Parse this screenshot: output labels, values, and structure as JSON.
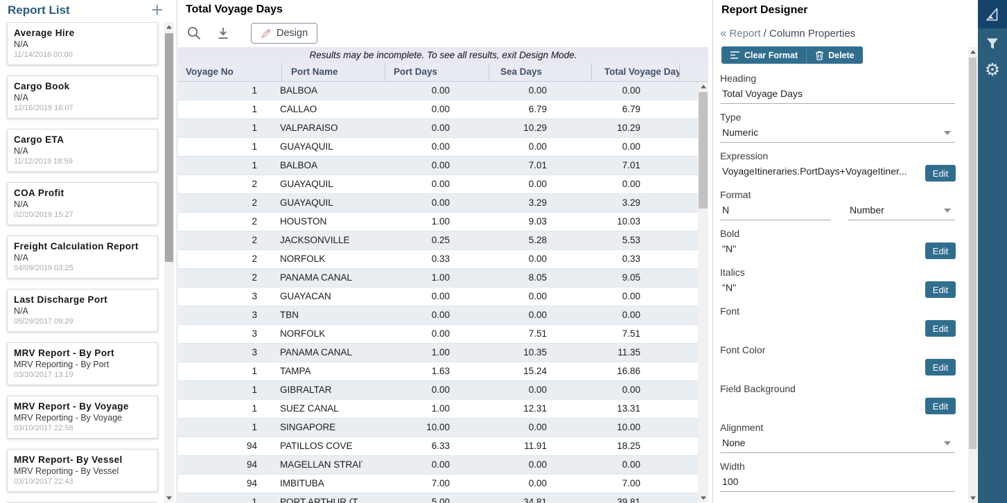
{
  "sidebar": {
    "title": "Report List",
    "reports": [
      {
        "title": "Average Hire",
        "subtitle": "N/A",
        "date": "11/14/2016 00:00"
      },
      {
        "title": "Cargo Book",
        "subtitle": "N/A",
        "date": "12/16/2019 16:07"
      },
      {
        "title": "Cargo ETA",
        "subtitle": "N/A",
        "date": "11/12/2019 18:59"
      },
      {
        "title": "COA Profit",
        "subtitle": "N/A",
        "date": "02/20/2019 15:27"
      },
      {
        "title": "Freight Calculation Report",
        "subtitle": "N/A",
        "date": "04/09/2019 03:25"
      },
      {
        "title": "Last Discharge Port",
        "subtitle": "N/A",
        "date": "05/29/2017 09:29"
      },
      {
        "title": "MRV Report - By Port",
        "subtitle": "MRV Reporting - By Port",
        "date": "03/30/2017 13:19"
      },
      {
        "title": "MRV Report - By Voyage",
        "subtitle": "MRV Reporting - By Voyage",
        "date": "03/10/2017 22:58"
      },
      {
        "title": "MRV Report- By Vessel",
        "subtitle": "MRV Reporting - By Vessel",
        "date": "03/10/2017 22:43"
      }
    ]
  },
  "main": {
    "title": "Total Voyage Days",
    "design_button_label": "Design",
    "notice": "Results may be incomplete. To see all results, exit Design Mode.",
    "table": {
      "columns": [
        "Voyage No",
        "Port Name",
        "Port Days",
        "Sea Days",
        "Total Voyage Days"
      ],
      "rows": [
        [
          "1",
          "BALBOA",
          "0.00",
          "0.00",
          "0.00"
        ],
        [
          "1",
          "CALLAO",
          "0.00",
          "6.79",
          "6.79"
        ],
        [
          "1",
          "VALPARAISO",
          "0.00",
          "10.29",
          "10.29"
        ],
        [
          "1",
          "GUAYAQUIL",
          "0.00",
          "0.00",
          "0.00"
        ],
        [
          "1",
          "BALBOA",
          "0.00",
          "7.01",
          "7.01"
        ],
        [
          "2",
          "GUAYAQUIL",
          "0.00",
          "0.00",
          "0.00"
        ],
        [
          "2",
          "GUAYAQUIL",
          "0.00",
          "3.29",
          "3.29"
        ],
        [
          "2",
          "HOUSTON",
          "1.00",
          "9.03",
          "10.03"
        ],
        [
          "2",
          "JACKSONVILLE",
          "0.25",
          "5.28",
          "5.53"
        ],
        [
          "2",
          "NORFOLK",
          "0.33",
          "0.00",
          "0.33"
        ],
        [
          "2",
          "PANAMA CANAL",
          "1.00",
          "8.05",
          "9.05"
        ],
        [
          "3",
          "GUAYACAN",
          "0.00",
          "0.00",
          "0.00"
        ],
        [
          "3",
          "TBN",
          "0.00",
          "0.00",
          "0.00"
        ],
        [
          "3",
          "NORFOLK",
          "0.00",
          "7.51",
          "7.51"
        ],
        [
          "3",
          "PANAMA CANAL",
          "1.00",
          "10.35",
          "11.35"
        ],
        [
          "1",
          "TAMPA",
          "1.63",
          "15.24",
          "16.86"
        ],
        [
          "1",
          "GIBRALTAR",
          "0.00",
          "0.00",
          "0.00"
        ],
        [
          "1",
          "SUEZ CANAL",
          "1.00",
          "12.31",
          "13.31"
        ],
        [
          "1",
          "SINGAPORE",
          "10.00",
          "0.00",
          "10.00"
        ],
        [
          "94",
          "PATILLOS COVE",
          "6.33",
          "11.91",
          "18.25"
        ],
        [
          "94",
          "MAGELLAN STRAIT",
          "0.00",
          "0.00",
          "0.00"
        ],
        [
          "94",
          "IMBITUBA",
          "7.00",
          "0.00",
          "7.00"
        ],
        [
          "1",
          "PORT ARTHUR (T",
          "5.00",
          "34.81",
          "39.81"
        ]
      ]
    }
  },
  "designer": {
    "title": "Report Designer",
    "breadcrumb_back_chevron": "«",
    "breadcrumb_back": "Report",
    "breadcrumb_separator": "/",
    "breadcrumb_current": "Column Properties",
    "clear_format_label": "Clear Format",
    "delete_label": "Delete",
    "edit_label": "Edit",
    "fields": {
      "heading": {
        "label": "Heading",
        "value": "Total Voyage Days"
      },
      "type": {
        "label": "Type",
        "value": "Numeric"
      },
      "expression": {
        "label": "Expression",
        "value": "VoyageItineraries.PortDays+VoyageItiner..."
      },
      "format": {
        "label": "Format",
        "value": "N",
        "format_type": "Number"
      },
      "bold": {
        "label": "Bold",
        "value": "\"N\""
      },
      "italics": {
        "label": "Italics",
        "value": "\"N\""
      },
      "font": {
        "label": "Font",
        "value": ""
      },
      "font_color": {
        "label": "Font Color",
        "value": ""
      },
      "field_background": {
        "label": "Field Background",
        "value": ""
      },
      "alignment": {
        "label": "Alignment",
        "value": "None"
      },
      "width": {
        "label": "Width",
        "value": "100"
      }
    }
  },
  "icons": {
    "add": "plus",
    "search": "magnifier",
    "download": "arrow-down-to-line",
    "design": "pencil",
    "clear_format": "format-lines",
    "delete": "trash",
    "dropdown": "caret-down",
    "pointer_tool": "set-square",
    "filter": "funnel",
    "settings": "gear"
  },
  "colors": {
    "accent_teal": "#316e8e",
    "sidebar_title": "#2a5d7e",
    "toolbar_dark": "#16436a",
    "toolbar_light": "#2b5d7c",
    "row_alt": "#e9eef3",
    "header_row": "#e9ebf3",
    "notice_bar": "#e7e8f1",
    "pencil_icon": "#dd8b8b"
  }
}
